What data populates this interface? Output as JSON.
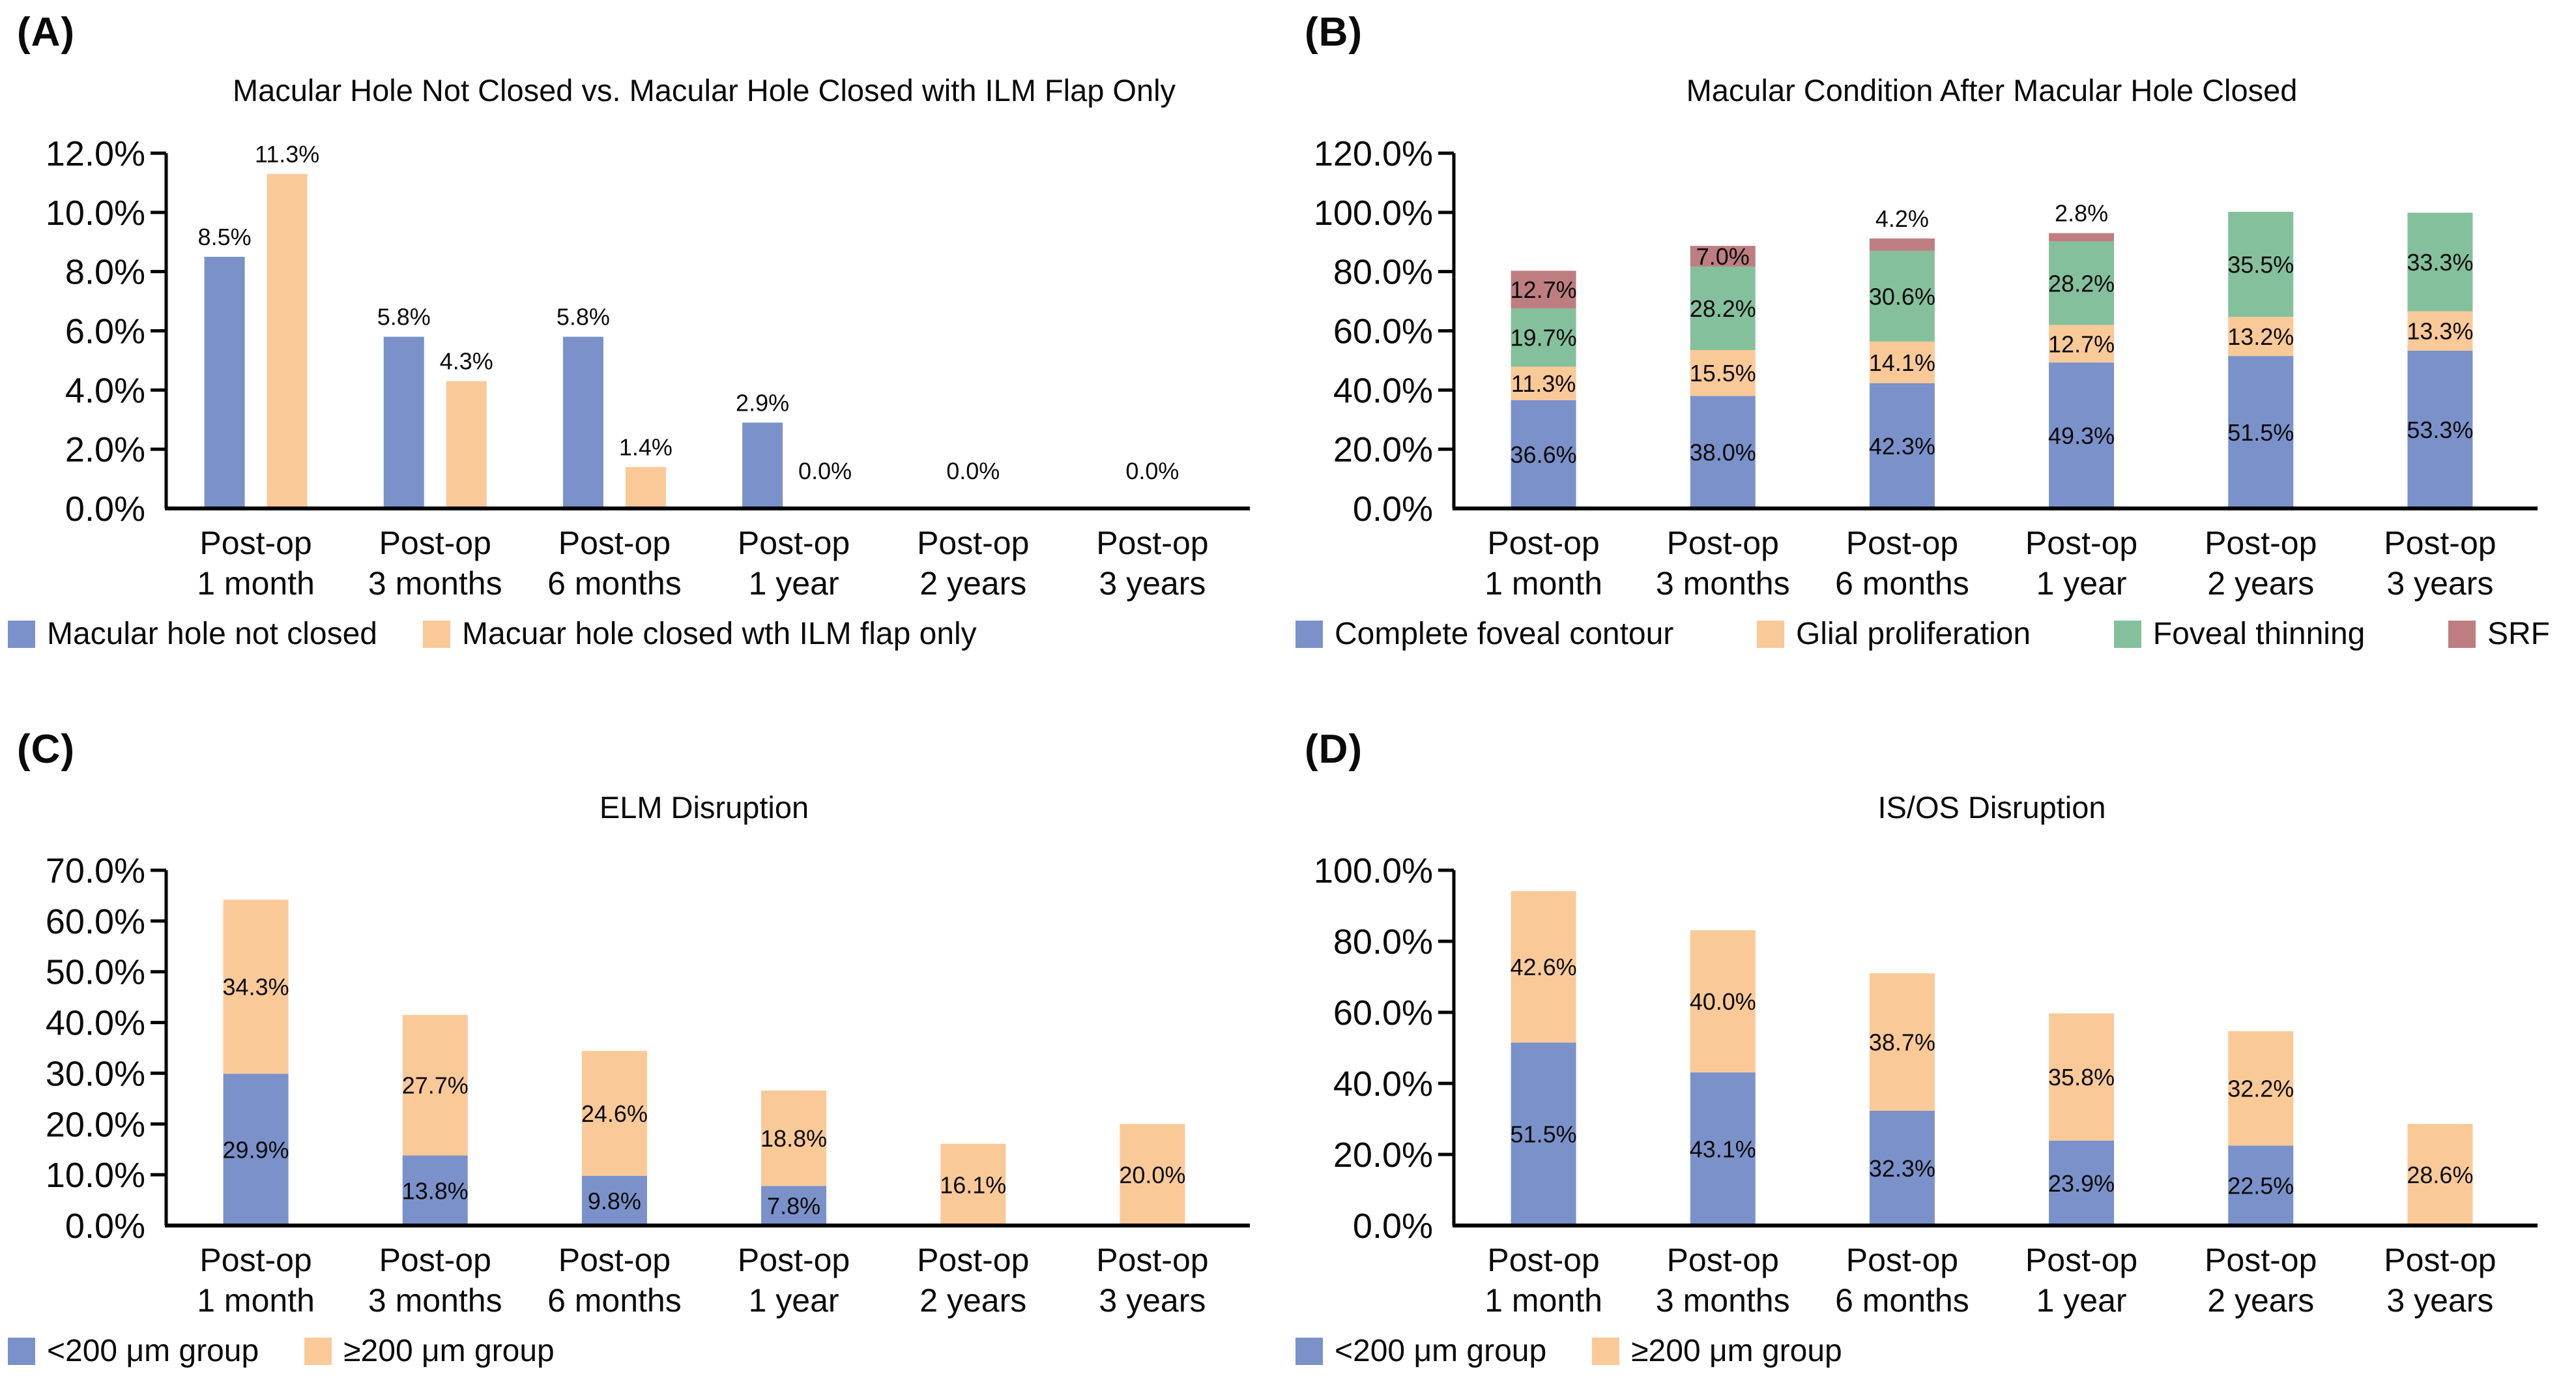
{
  "figure": {
    "background": "#ffffff",
    "text_color": "#0a0a0a",
    "axis_color": "#000000"
  },
  "chart_data": [
    {
      "panel_letter": "(A)",
      "type": "bar",
      "stacked": false,
      "title": "Macular Hole Not Closed vs. Macular Hole Closed with ILM Flap Only",
      "categories": [
        "Post-op 1 month",
        "Post-op 3 months",
        "Post-op 6 months",
        "Post-op 1 year",
        "Post-op 2 years",
        "Post-op 3 years"
      ],
      "series": [
        {
          "name": "Macular hole not closed",
          "color": "#7B91CA",
          "values": [
            8.5,
            5.8,
            5.8,
            2.9,
            0.0,
            0.0
          ]
        },
        {
          "name": "Macuar hole closed wth ILM flap only",
          "color": "#FAC998",
          "values": [
            11.3,
            4.3,
            1.4,
            0.0,
            0.0,
            0.0
          ]
        }
      ],
      "ylim": [
        0,
        12
      ],
      "y_tick_labels": [
        "0.0%",
        "2.0%",
        "4.0%",
        "6.0%",
        "8.0%",
        "10.0%",
        "12.0%"
      ],
      "grid": false,
      "value_label_format": "one-decimal-percent",
      "legend_position": "bottom-left"
    },
    {
      "panel_letter": "(B)",
      "type": "bar",
      "stacked": true,
      "title": "Macular Condition After Macular Hole Closed",
      "categories": [
        "Post-op 1 month",
        "Post-op 3 months",
        "Post-op 6 months",
        "Post-op 1 year",
        "Post-op 2 years",
        "Post-op 3 years"
      ],
      "series": [
        {
          "name": "Complete foveal contour",
          "color": "#7B91CA",
          "values": [
            36.6,
            38.0,
            42.3,
            49.3,
            51.5,
            53.3
          ]
        },
        {
          "name": "Glial proliferation",
          "color": "#FAC998",
          "values": [
            11.3,
            15.5,
            14.1,
            12.7,
            13.2,
            13.3
          ]
        },
        {
          "name": "Foveal thinning",
          "color": "#85C09D",
          "values": [
            19.7,
            28.2,
            30.6,
            28.2,
            35.5,
            33.3
          ]
        },
        {
          "name": "SRF",
          "color": "#BE7E81",
          "values": [
            12.7,
            7.0,
            4.2,
            2.8,
            0.0,
            0.0
          ]
        }
      ],
      "ylim": [
        0,
        120
      ],
      "y_tick_labels": [
        "0.0%",
        "20.0%",
        "40.0%",
        "60.0%",
        "80.0%",
        "100.0%",
        "120.0%"
      ],
      "grid": false,
      "value_label_format": "one-decimal-percent",
      "legend_position": "bottom-spread"
    },
    {
      "panel_letter": "(C)",
      "type": "bar",
      "stacked": true,
      "title": "ELM Disruption",
      "categories": [
        "Post-op 1 month",
        "Post-op 3 months",
        "Post-op 6 months",
        "Post-op 1 year",
        "Post-op 2 years",
        "Post-op 3 years"
      ],
      "series": [
        {
          "name": "<200 μm group",
          "color": "#7B91CA",
          "values": [
            29.9,
            13.8,
            9.8,
            7.8,
            0.0,
            0.0
          ]
        },
        {
          "name": "≥200 μm group",
          "color": "#FAC998",
          "values": [
            34.3,
            27.7,
            24.6,
            18.8,
            16.1,
            20.0
          ]
        }
      ],
      "ylim": [
        0,
        70
      ],
      "y_tick_labels": [
        "0.0%",
        "10.0%",
        "20.0%",
        "30.0%",
        "40.0%",
        "50.0%",
        "60.0%",
        "70.0%"
      ],
      "grid": false,
      "value_label_format": "one-decimal-percent",
      "legend_position": "bottom-left"
    },
    {
      "panel_letter": "(D)",
      "type": "bar",
      "stacked": true,
      "title": "IS/OS Disruption",
      "categories": [
        "Post-op 1 month",
        "Post-op 3 months",
        "Post-op 6 months",
        "Post-op 1 year",
        "Post-op 2 years",
        "Post-op 3 years"
      ],
      "series": [
        {
          "name": "<200 μm group",
          "color": "#7B91CA",
          "values": [
            51.5,
            43.1,
            32.3,
            23.9,
            22.5,
            0.0
          ]
        },
        {
          "name": "≥200 μm group",
          "color": "#FAC998",
          "values": [
            42.6,
            40.0,
            38.7,
            35.8,
            32.2,
            28.6
          ]
        }
      ],
      "ylim": [
        0,
        100
      ],
      "y_tick_labels": [
        "0.0%",
        "20.0%",
        "40.0%",
        "60.0%",
        "80.0%",
        "100.0%"
      ],
      "grid": false,
      "value_label_format": "one-decimal-percent",
      "legend_position": "bottom-left"
    }
  ]
}
